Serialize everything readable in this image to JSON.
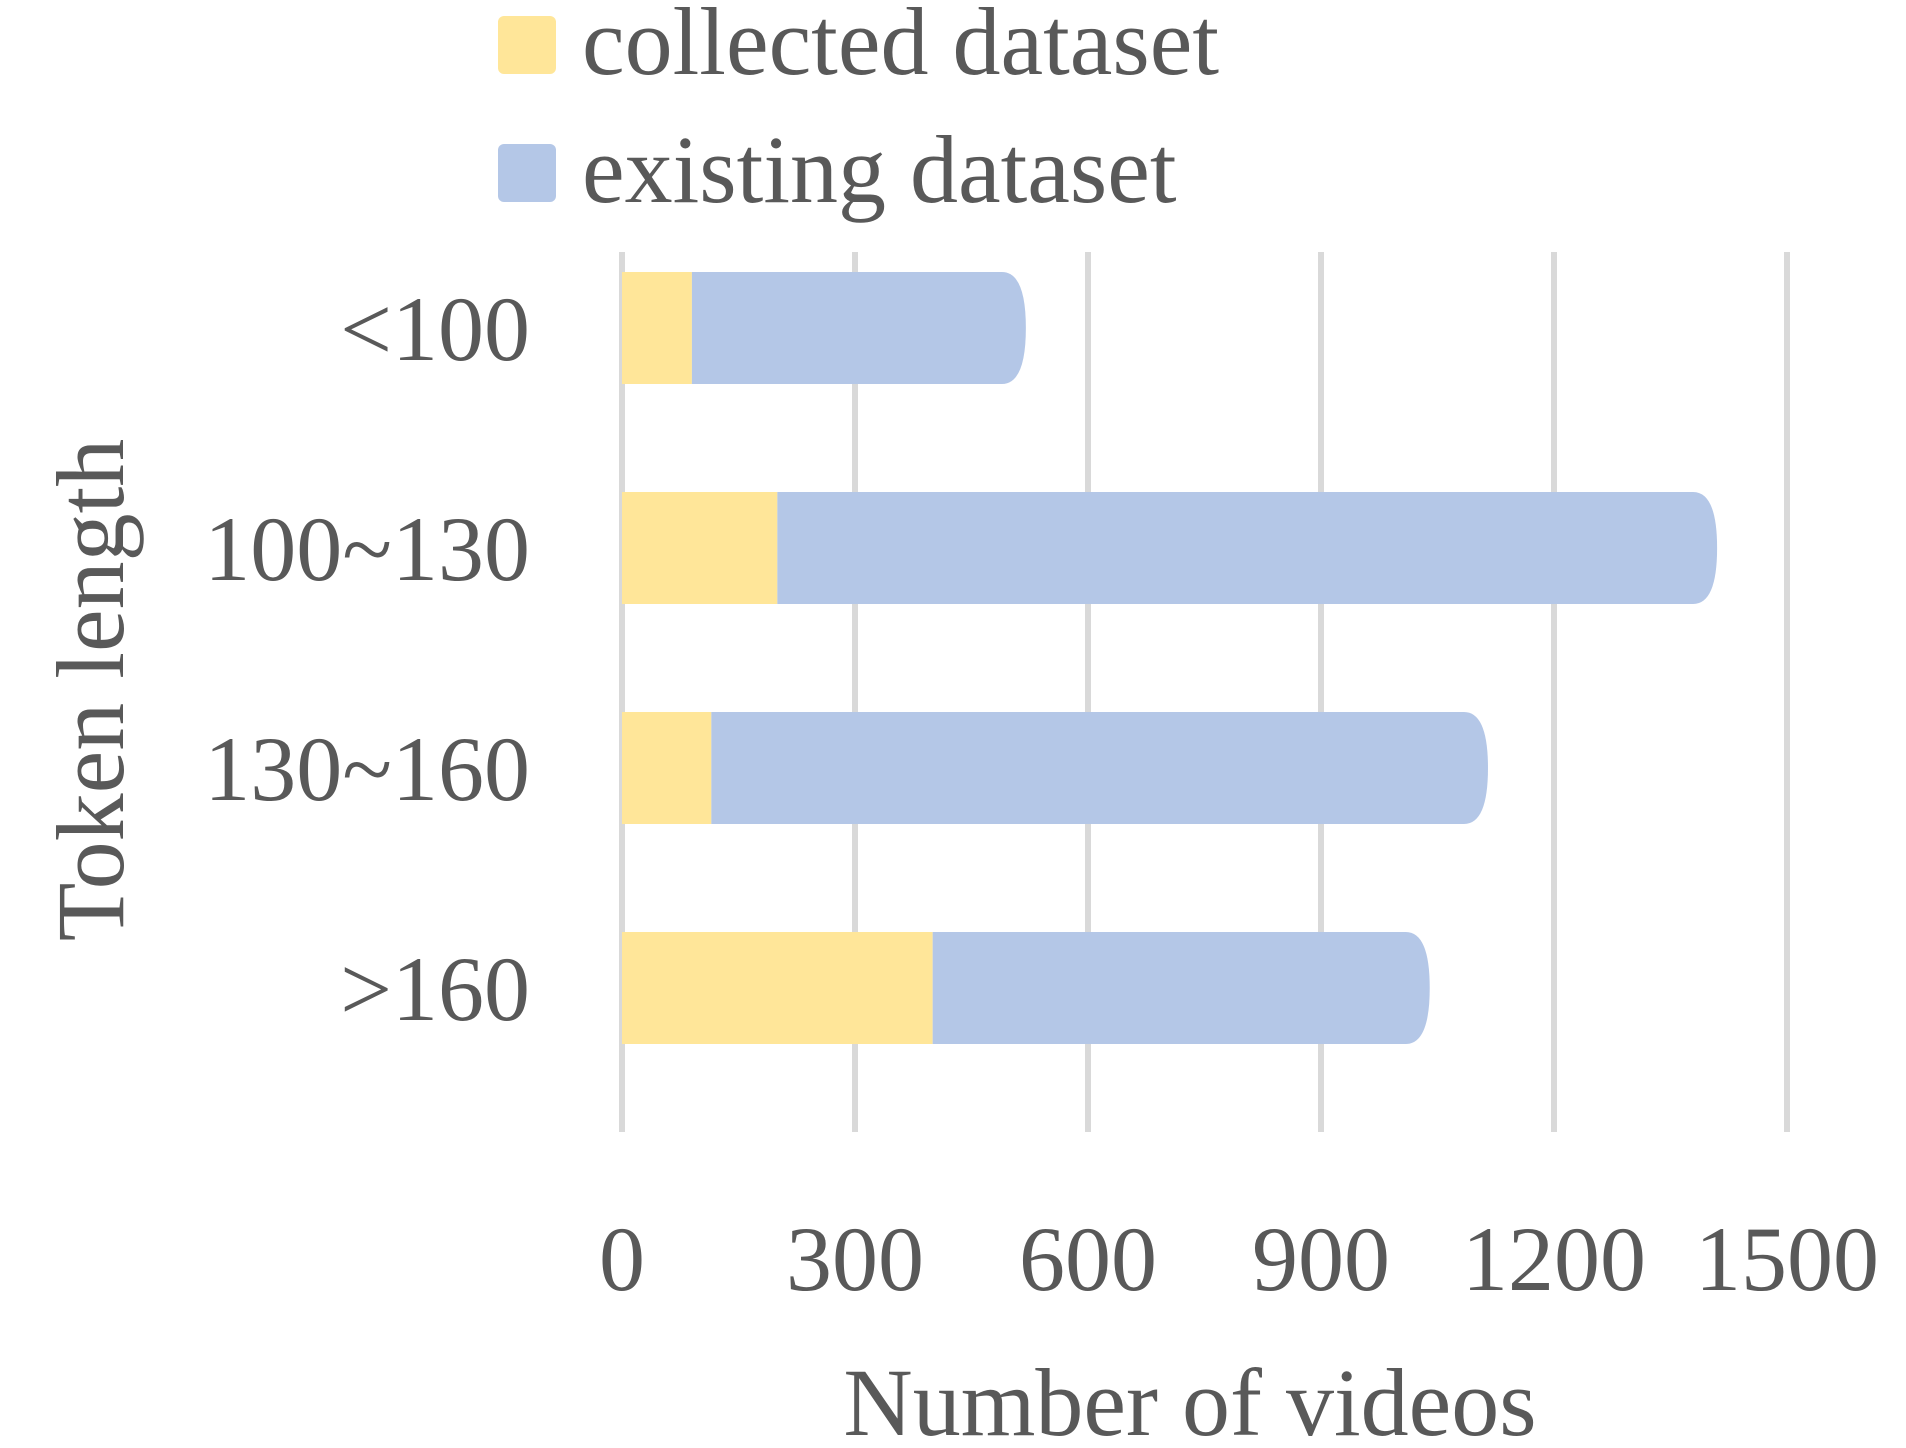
{
  "chart_data": {
    "type": "bar",
    "orientation": "horizontal",
    "stacked": true,
    "categories": [
      "<100",
      "100~130",
      "130~160",
      ">160"
    ],
    "series": [
      {
        "name": "collected dataset",
        "values": [
          90,
          200,
          115,
          400
        ],
        "color": "#FFE699"
      },
      {
        "name": "existing dataset",
        "values": [
          430,
          1210,
          1000,
          640
        ],
        "color": "#B4C7E7"
      }
    ],
    "xlabel": "Number of videos",
    "ylabel": "Token length",
    "xlim": [
      0,
      1500
    ],
    "xticks": [
      "0",
      "300",
      "600",
      "900",
      "1200",
      "1500"
    ],
    "grid": "vertical",
    "legend_position": "top"
  }
}
